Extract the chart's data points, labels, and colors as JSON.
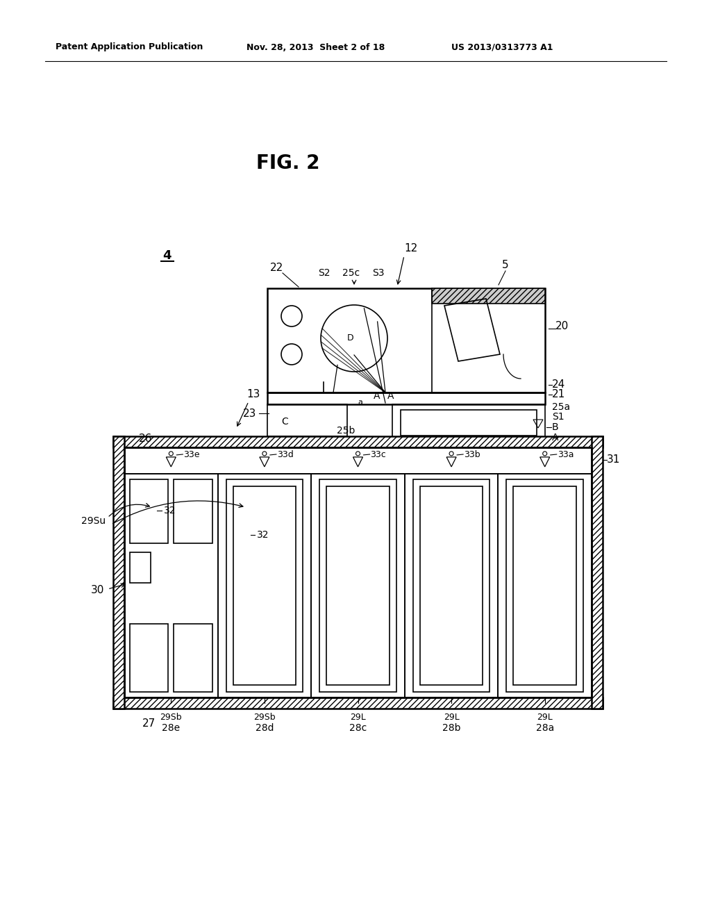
{
  "bg_color": "#ffffff",
  "header_left": "Patent Application Publication",
  "header_mid": "Nov. 28, 2013  Sheet 2 of 18",
  "header_right": "US 2013/0313773 A1",
  "fig_title": "FIG. 2",
  "lc": "black"
}
